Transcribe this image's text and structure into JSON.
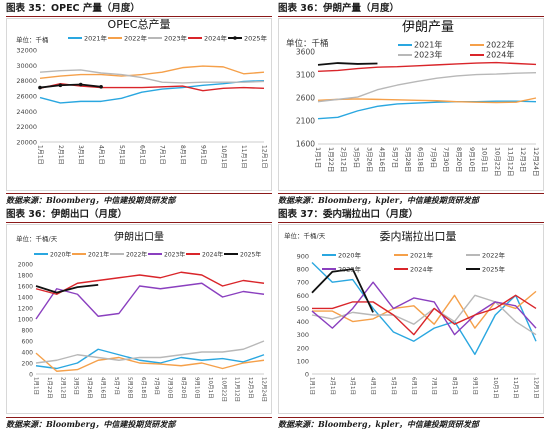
{
  "panels": [
    {
      "caption": "图表 35：OPEC 产量（月度）",
      "source": "数据来源：Bloomberg，中信建投期货研发部",
      "chart_data": {
        "type": "line",
        "title": "OPEC总产量",
        "unit_label": "单位：千桶",
        "x": [
          "1月1日",
          "2月1日",
          "3月1日",
          "4月1日",
          "5月1日",
          "6月1日",
          "7月1日",
          "8月1日",
          "9月1日",
          "10月1日",
          "11月1日",
          "12月1日"
        ],
        "x_tick_labels": [
          "1月1日",
          "2月1日",
          "3月1日",
          "4月1日",
          "5月1日",
          "6月1日",
          "7月1日",
          "8月1日",
          "9月1日",
          "10月1日",
          "11月1日",
          "12月1日"
        ],
        "ylim": [
          20000,
          32000
        ],
        "yticks": [
          20000,
          22000,
          24000,
          26000,
          28000,
          30000,
          32000
        ],
        "grid": false,
        "legend_position": "top",
        "series": [
          {
            "name": "2021年",
            "color": "#2aa7e0",
            "values": [
              25800,
              25100,
              25300,
              25300,
              25700,
              26500,
              26900,
              27100,
              27400,
              27600,
              27900,
              28000
            ]
          },
          {
            "name": "2022年",
            "color": "#f5a04a",
            "values": [
              28300,
              28600,
              28800,
              28800,
              28600,
              28800,
              29100,
              29700,
              29900,
              29800,
              28900,
              29100
            ]
          },
          {
            "name": "2023年",
            "color": "#b8b8b8",
            "values": [
              29100,
              29300,
              29400,
              29000,
              28800,
              28400,
              27800,
              27700,
              27800,
              27800,
              27800,
              27900
            ]
          },
          {
            "name": "2024年",
            "color": "#d9252a",
            "values": [
              27000,
              27600,
              27300,
              27100,
              27100,
              27100,
              27200,
              27300,
              26700,
              27000,
              27100,
              27000
            ]
          },
          {
            "name": "2025年",
            "color": "#111111",
            "values": [
              27100,
              27400,
              27500,
              27200,
              null,
              null,
              null,
              null,
              null,
              null,
              null,
              null
            ]
          }
        ]
      }
    },
    {
      "caption": "图表 36：伊朗产量（月度）",
      "source": "数据来源：Bloomberg，kpler，中信建投期货研发部",
      "chart_data": {
        "type": "line",
        "title": "伊朗产量",
        "unit_label": "单位：千桶",
        "x_tick_labels": [
          "1月1日",
          "1月22日",
          "2月12日",
          "3月5日",
          "3月26日",
          "4月16日",
          "5月7日",
          "5月28日",
          "6月18日",
          "7月9日",
          "7月30日",
          "8月20日",
          "9月10日",
          "10月1日",
          "10月22日",
          "11月12日",
          "12月3日",
          "12月24日"
        ],
        "ylim": [
          1600,
          3600
        ],
        "yticks": [
          1600,
          2100,
          2600,
          3100,
          3600
        ],
        "grid": false,
        "legend_position": "top-right",
        "series": [
          {
            "name": "2021年",
            "color": "#2aa7e0",
            "x": [
              0,
              1,
              2,
              3,
              4,
              5,
              6,
              7,
              8,
              9,
              10,
              11
            ],
            "values": [
              2150,
              2180,
              2320,
              2420,
              2470,
              2490,
              2510,
              2520,
              2520,
              2530,
              2530,
              2520
            ]
          },
          {
            "name": "2022年",
            "color": "#f5a04a",
            "x": [
              0,
              1,
              2,
              3,
              4,
              5,
              6,
              7,
              8,
              9,
              10,
              11
            ],
            "values": [
              2550,
              2570,
              2580,
              2570,
              2560,
              2550,
              2540,
              2520,
              2510,
              2500,
              2510,
              2600
            ]
          },
          {
            "name": "2023年",
            "color": "#b8b8b8",
            "x": [
              0,
              1,
              2,
              3,
              4,
              5,
              6,
              7,
              8,
              9,
              10,
              11
            ],
            "values": [
              2520,
              2570,
              2620,
              2780,
              2880,
              2960,
              3030,
              3080,
              3110,
              3120,
              3140,
              3150
            ]
          },
          {
            "name": "2024年",
            "color": "#d9252a",
            "x": [
              0,
              1,
              2,
              3,
              4,
              5,
              6,
              7,
              8,
              9,
              10,
              11
            ],
            "values": [
              3180,
              3200,
              3240,
              3270,
              3280,
              3300,
              3320,
              3340,
              3360,
              3370,
              3350,
              3330
            ]
          },
          {
            "name": "2025年",
            "color": "#111111",
            "x": [
              0,
              1,
              2,
              3
            ],
            "values": [
              3320,
              3360,
              3340,
              3350
            ]
          }
        ]
      }
    },
    {
      "caption": "图表 36：伊朗出口（月度）",
      "source": "数据来源：Bloomberg，中信建投期货研发部",
      "chart_data": {
        "type": "line",
        "title": "伊朗出口量",
        "unit_label": "单位：千桶/天",
        "x_tick_labels": [
          "1月1日",
          "1月22日",
          "2月12日",
          "3月5日",
          "3月26日",
          "4月16日",
          "5月7日",
          "5月28日",
          "6月18日",
          "7月9日",
          "7月30日",
          "8月20日",
          "9月10日",
          "10月1日",
          "10月22日",
          "11月12日",
          "12月3日",
          "12月24日"
        ],
        "ylim": [
          0,
          2000
        ],
        "yticks": [
          0,
          200,
          400,
          600,
          800,
          1000,
          1200,
          1400,
          1600,
          1800,
          2000
        ],
        "grid": false,
        "legend_position": "top",
        "series": [
          {
            "name": "2020年",
            "color": "#2aa7e0",
            "values": [
              150,
              100,
              200,
              450,
              350,
              250,
              200,
              300,
              250,
              280,
              220,
              350
            ]
          },
          {
            "name": "2021年",
            "color": "#f5a04a",
            "values": [
              380,
              50,
              80,
              250,
              300,
              200,
              180,
              150,
              200,
              100,
              200,
              250
            ]
          },
          {
            "name": "2022年",
            "color": "#b8b8b8",
            "values": [
              200,
              250,
              350,
              300,
              250,
              300,
              300,
              350,
              400,
              400,
              450,
              600
            ]
          },
          {
            "name": "2023年",
            "color": "#8a3fbf",
            "values": [
              1000,
              1550,
              1450,
              1050,
              1100,
              1600,
              1550,
              1600,
              1650,
              1400,
              1500,
              1450
            ]
          },
          {
            "name": "2024年",
            "color": "#d9252a",
            "values": [
              1550,
              1450,
              1650,
              1700,
              1750,
              1800,
              1750,
              1850,
              1800,
              1600,
              1700,
              1650
            ]
          },
          {
            "name": "2025年",
            "color": "#111111",
            "values": [
              1600,
              1480,
              1580,
              1620,
              null,
              null,
              null,
              null,
              null,
              null,
              null,
              null
            ]
          }
        ]
      }
    },
    {
      "caption": "图表 37：委内瑞拉出口（月度）",
      "source": "数据来源：Bloomberg，kpler，中信建投期货研发部",
      "chart_data": {
        "type": "line",
        "title": "委内瑞拉出口量",
        "unit_label": "单位：千桶/天",
        "x_tick_labels": [
          "1月1日",
          "2月1日",
          "3月1日",
          "4月1日",
          "5月1日",
          "6月1日",
          "7月1日",
          "8月1日",
          "9月1日",
          "10月1日",
          "11月1日",
          "12月1日"
        ],
        "ylim": [
          0,
          900
        ],
        "yticks": [
          0,
          100,
          200,
          300,
          400,
          500,
          600,
          700,
          800,
          900
        ],
        "grid": false,
        "legend_position": "top",
        "series": [
          {
            "name": "2020年",
            "color": "#2aa7e0",
            "values": [
              850,
              700,
              720,
              500,
              320,
              250,
              350,
              400,
              150,
              450,
              600,
              250
            ]
          },
          {
            "name": "2021年",
            "color": "#f5a04a",
            "values": [
              480,
              480,
              400,
              420,
              500,
              520,
              380,
              600,
              350,
              550,
              500,
              630
            ]
          },
          {
            "name": "2022年",
            "color": "#b8b8b8",
            "values": [
              450,
              420,
              470,
              450,
              450,
              380,
              500,
              400,
              600,
              550,
              400,
              300
            ]
          },
          {
            "name": "2023年",
            "color": "#8a3fbf",
            "values": [
              480,
              350,
              500,
              700,
              500,
              580,
              550,
              300,
              450,
              550,
              520,
              350
            ]
          },
          {
            "name": "2024年",
            "color": "#d9252a",
            "values": [
              500,
              500,
              550,
              550,
              450,
              300,
              500,
              380,
              450,
              500,
              600,
              500
            ]
          },
          {
            "name": "2025年",
            "color": "#111111",
            "values": [
              620,
              780,
              800,
              470,
              null,
              null,
              null,
              null,
              null,
              null,
              null,
              null
            ]
          }
        ]
      }
    }
  ]
}
